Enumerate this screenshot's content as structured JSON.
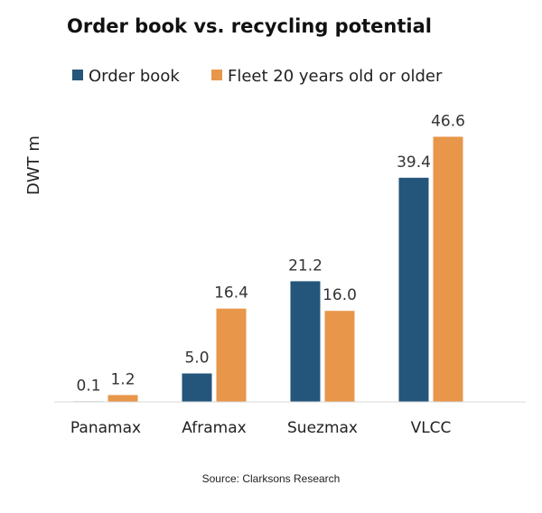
{
  "chart_data": {
    "type": "bar",
    "title": "Order book vs. recycling potential",
    "ylabel": "DWT m",
    "xlabel": "",
    "categories": [
      "Panamax",
      "Aframax",
      "Suezmax",
      "VLCC"
    ],
    "series": [
      {
        "name": "Order book",
        "values": [
          0.1,
          5.0,
          21.2,
          39.4
        ],
        "color": "#24557a"
      },
      {
        "name": "Fleet 20 years old or older",
        "values": [
          1.2,
          16.4,
          16.0,
          46.6
        ],
        "color": "#e8964a"
      }
    ],
    "data_labels": [
      [
        "0.1",
        "5.0",
        "21.2",
        "39.4"
      ],
      [
        "1.2",
        "16.4",
        "16.0",
        "46.6"
      ]
    ],
    "ylim": [
      0,
      50
    ],
    "grid": false,
    "legend_position": "top",
    "source": "Source: Clarksons Research",
    "axis_color": "#d9d9d9"
  }
}
